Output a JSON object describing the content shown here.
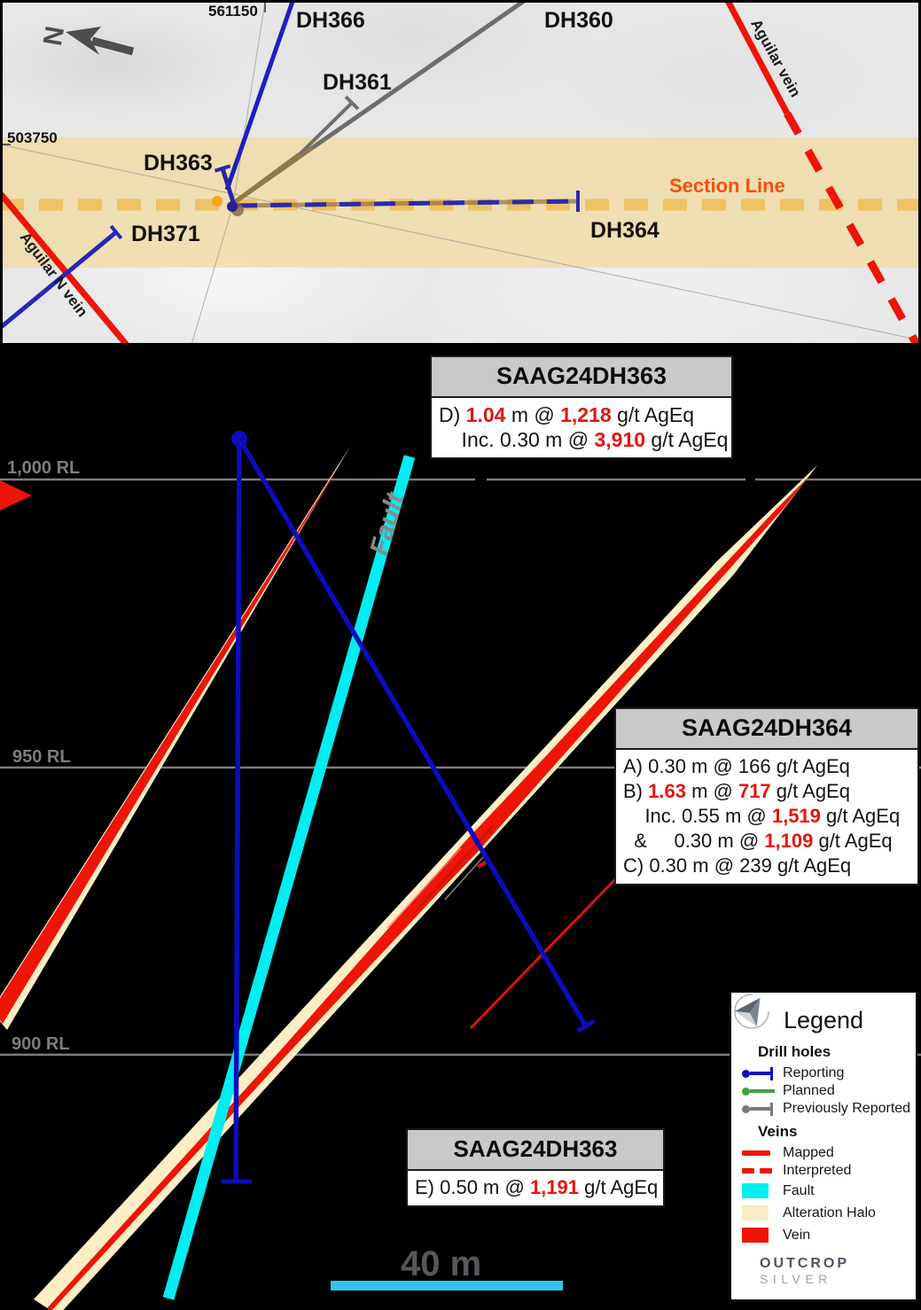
{
  "colors": {
    "vein_red": "#ee1408",
    "halo_cream": "#fbeec5",
    "fault_cyan": "#00eef2",
    "drill_blue": "#0d0dbe",
    "planned_green": "#3da23d",
    "previously_gray": "#787878",
    "highlight_red_text": "#e8130d",
    "section_line_dash": "#eebc55",
    "section_line_label": "#f4500f",
    "scale_bar_cyan": "#2fc4ec"
  },
  "map": {
    "north_label": "N",
    "grid_labels": {
      "easting": "561150",
      "northing": "503750"
    },
    "drill_labels": {
      "dh366": "DH366",
      "dh360": "DH360",
      "dh361": "DH361",
      "dh363": "DH363",
      "dh371": "DH371",
      "dh364": "DH364"
    },
    "vein_labels": {
      "aguilar": "Aguilar vein",
      "aguilar_n": "Aguilar N vein"
    },
    "section_line_label": "Section Line"
  },
  "section": {
    "rl_labels": {
      "rl1000": "1,000 RL",
      "rl950": "950 RL",
      "rl900": "900 RL"
    },
    "fault_label": "Fault",
    "scale_label": "40 m",
    "box_dh363_top": {
      "title": "SAAG24DH363",
      "lines": [
        [
          {
            "t": "D) "
          },
          {
            "t": "1.04",
            "red": true
          },
          {
            "t": " m @ "
          },
          {
            "t": "1,218",
            "red": true
          },
          {
            "t": " g/t AgEq"
          }
        ],
        [
          {
            "t": "    Inc. 0.30 m @ "
          },
          {
            "t": "3,910",
            "red": true
          },
          {
            "t": " g/t AgEq"
          }
        ]
      ]
    },
    "box_dh364": {
      "title": "SAAG24DH364",
      "lines": [
        [
          {
            "t": "A) 0.30 m @ 166 g/t AgEq"
          }
        ],
        [
          {
            "t": "B) "
          },
          {
            "t": "1.63",
            "red": true
          },
          {
            "t": " m @ "
          },
          {
            "t": "717",
            "red": true
          },
          {
            "t": " g/t AgEq"
          }
        ],
        [
          {
            "t": "    Inc. 0.55 m @ "
          },
          {
            "t": "1,519",
            "red": true
          },
          {
            "t": " g/t AgEq"
          }
        ],
        [
          {
            "t": "  &     0.30 m @ "
          },
          {
            "t": "1,109",
            "red": true
          },
          {
            "t": " g/t AgEq"
          }
        ],
        [
          {
            "t": "C) 0.30 m @ 239 g/t AgEq"
          }
        ]
      ]
    },
    "box_dh363_bottom": {
      "title": "SAAG24DH363",
      "lines": [
        [
          {
            "t": "E) 0.50 m @ "
          },
          {
            "t": "1,191",
            "red": true
          },
          {
            "t": " g/t AgEq"
          }
        ]
      ]
    }
  },
  "legend": {
    "title": "Legend",
    "drill_holes_heading": "Drill holes",
    "drill_rows": [
      {
        "label": "Reporting"
      },
      {
        "label": "Planned"
      },
      {
        "label": "Previously Reported"
      }
    ],
    "veins_heading": "Veins",
    "vein_rows": [
      {
        "label": "Mapped"
      },
      {
        "label": "Interpreted"
      },
      {
        "label": "Fault"
      },
      {
        "label": "Alteration Halo"
      },
      {
        "label": "Vein"
      }
    ]
  },
  "logo": {
    "line1": "OUTCROP",
    "line2": "SILVER"
  }
}
